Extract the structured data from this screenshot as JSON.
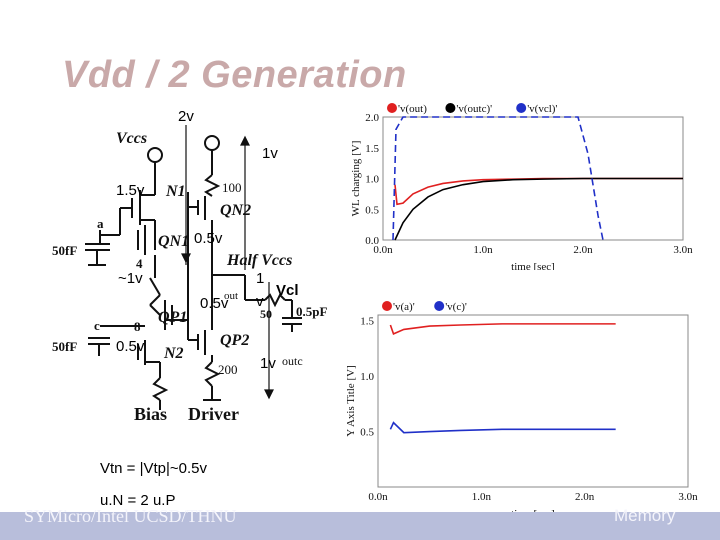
{
  "title": "Vdd / 2 Generation",
  "annotations": {
    "v2": "2v",
    "v1_top": "1v",
    "v15": "1.5v",
    "v05_a": "0.5v",
    "v1_approx": "~1v",
    "v05_b": "0.5v",
    "v05_c": "0.5v",
    "v1_label": "1",
    "v_letter": "v",
    "v1_bottom": "1v"
  },
  "schematic": {
    "vccs_left": "Vccs",
    "vccs_right": "Vccs",
    "r100": "100",
    "qn2": "QN2",
    "n1": "N1",
    "node_a": "a",
    "qn1": "QN1",
    "cap_a": "50fF",
    "node4": "4",
    "half_vccs": "Half Vccs",
    "out": "out",
    "vcl": "Vcl",
    "r50": "50",
    "cap_out": "0.5pF",
    "node_c": "c",
    "node8": "8",
    "qp1": "QP1",
    "qp2": "QP2",
    "cap_c": "50fF",
    "n2": "N2",
    "r200": "200",
    "outc": "outc",
    "bias": "Bias",
    "driver": "Driver"
  },
  "notes": {
    "vtn": "Vtn =  |Vtp|~0.5v",
    "un": "u.N = 2 u.P"
  },
  "footer": {
    "left": "SYMicro/Intel UCSD/THNU",
    "right": "Memory"
  },
  "colors": {
    "red": "#e02020",
    "black": "#000000",
    "blue": "#2030c8"
  },
  "chart_data": [
    {
      "type": "line",
      "title": "",
      "legend": [
        "'v(out)",
        "'v(outc)'",
        "'v(vcl)'"
      ],
      "ylabel": "WL charging  [V]",
      "xlabel": "time  [sec]",
      "yticks": [
        "0.0",
        "0.5",
        "1.0",
        "1.5",
        "2.0"
      ],
      "xticks": [
        "0.0n",
        "1.0n",
        "2.0n",
        "3.0n"
      ],
      "ylim": [
        0,
        2.0
      ],
      "xlim": [
        0,
        3.0
      ],
      "series": [
        {
          "name": "'v(out)",
          "color": "#e02020",
          "x": [
            0.12,
            0.14,
            0.2,
            0.3,
            0.45,
            0.6,
            0.8,
            1.0,
            1.3,
            1.6,
            1.9,
            2.2,
            2.6,
            3.0
          ],
          "y": [
            0.9,
            0.58,
            0.6,
            0.75,
            0.86,
            0.92,
            0.96,
            0.98,
            0.99,
            1.0,
            1.0,
            1.0,
            1.0,
            1.0
          ]
        },
        {
          "name": "'v(outc)'",
          "color": "#000000",
          "x": [
            0.12,
            0.2,
            0.3,
            0.45,
            0.6,
            0.8,
            1.0,
            1.3,
            1.6,
            2.0,
            2.4,
            3.0
          ],
          "y": [
            0.0,
            0.28,
            0.5,
            0.7,
            0.82,
            0.9,
            0.95,
            0.98,
            0.99,
            1.0,
            1.0,
            1.0
          ]
        },
        {
          "name": "'v(vcl)'",
          "color": "#2030c8",
          "dashed": true,
          "x": [
            0.1,
            0.13,
            0.2,
            0.4,
            0.8,
            1.2,
            1.6,
            1.95,
            2.05,
            2.15,
            2.2
          ],
          "y": [
            0.0,
            1.8,
            2.0,
            2.0,
            2.0,
            2.0,
            2.0,
            2.0,
            1.4,
            0.4,
            0.0
          ]
        }
      ]
    },
    {
      "type": "line",
      "title": "",
      "legend": [
        "'v(a)'",
        "'v(c)'"
      ],
      "ylabel": "Y Axis Title  [V]",
      "xlabel": "time  [sec]",
      "yticks": [
        "0.5",
        "1.0",
        "1.5"
      ],
      "xticks": [
        "0.0n",
        "1.0n",
        "2.0n",
        "3.0n"
      ],
      "ylim": [
        0.0,
        1.55
      ],
      "xlim": [
        0,
        3.0
      ],
      "series": [
        {
          "name": "'v(a)'",
          "color": "#e02020",
          "x": [
            0.12,
            0.15,
            0.25,
            0.5,
            0.8,
            1.2,
            1.6,
            2.0,
            2.3
          ],
          "y": [
            1.46,
            1.38,
            1.42,
            1.45,
            1.46,
            1.47,
            1.47,
            1.47,
            1.47
          ]
        },
        {
          "name": "'v(c)'",
          "color": "#2030c8",
          "x": [
            0.12,
            0.15,
            0.25,
            0.5,
            0.8,
            1.2,
            1.6,
            2.0,
            2.3
          ],
          "y": [
            0.52,
            0.58,
            0.49,
            0.5,
            0.51,
            0.52,
            0.52,
            0.52,
            0.52
          ]
        }
      ]
    }
  ]
}
